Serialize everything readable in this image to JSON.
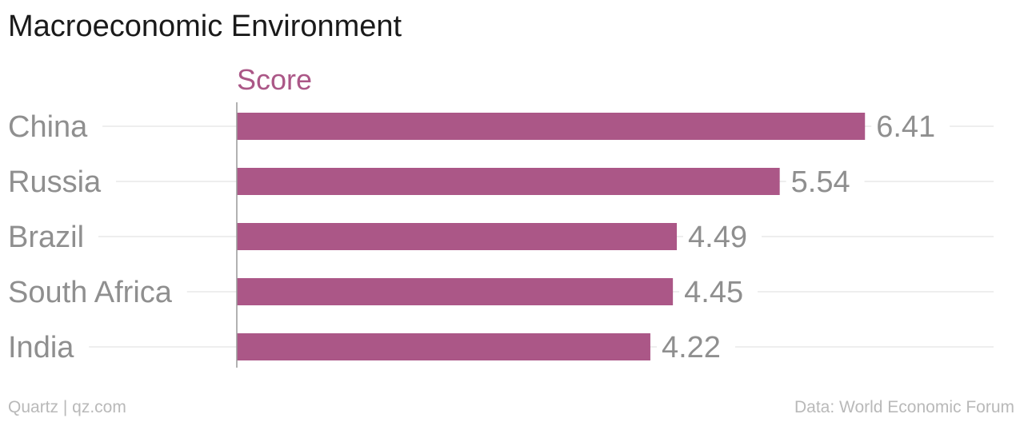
{
  "header": {
    "title": "Macroeconomic Environment"
  },
  "footer": {
    "source_left": "Quartz | qz.com",
    "source_right": "Data: World Economic Forum"
  },
  "colors": {
    "bar": "#ab5787",
    "label": "#8f8f8f",
    "grid": "#e8e8e8",
    "axis": "#999999"
  },
  "chart_data": {
    "type": "bar",
    "orientation": "horizontal",
    "title": "Macroeconomic Environment",
    "categories": [
      "China",
      "Russia",
      "Brazil",
      "South Africa",
      "India"
    ],
    "series": [
      {
        "name": "Score",
        "values": [
          6.41,
          5.54,
          4.49,
          4.45,
          4.22
        ]
      }
    ],
    "xlim": [
      0,
      7
    ],
    "grid": true,
    "data_labels": true
  }
}
